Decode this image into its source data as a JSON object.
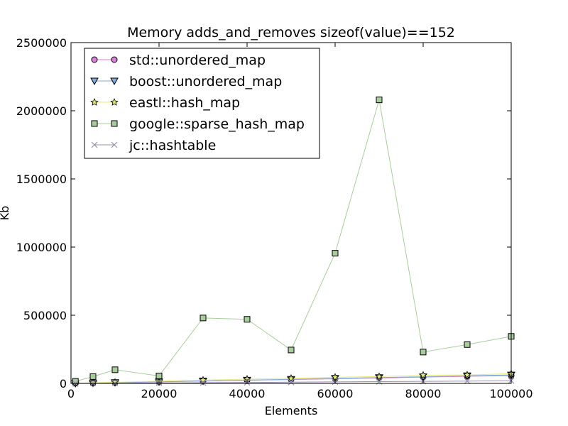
{
  "chart_data": {
    "type": "line",
    "title": "Memory adds_and_removes sizeof(value)==152",
    "xlabel": "Elements",
    "ylabel": "Kb",
    "xlim": [
      0,
      100000
    ],
    "ylim": [
      0,
      2500000
    ],
    "xticks": [
      0,
      20000,
      40000,
      60000,
      80000,
      100000
    ],
    "yticks": [
      0,
      500000,
      1000000,
      1500000,
      2000000,
      2500000
    ],
    "xtick_labels": [
      "0",
      "20000",
      "40000",
      "60000",
      "80000",
      "100000"
    ],
    "ytick_labels": [
      "0",
      "500000",
      "1000000",
      "1500000",
      "2000000",
      "2500000"
    ],
    "grid": false,
    "legend_position": "upper-left",
    "x": [
      1000,
      5000,
      10000,
      20000,
      30000,
      40000,
      50000,
      60000,
      70000,
      80000,
      90000,
      100000
    ],
    "series": [
      {
        "name": "std::unordered_map",
        "color": "#dd7fdd",
        "marker": "circle",
        "values": [
          1000,
          3000,
          6000,
          11000,
          17000,
          23000,
          28000,
          34000,
          40000,
          46000,
          52000,
          57000
        ]
      },
      {
        "name": "boost::unordered_map",
        "color": "#7fa8dd",
        "marker": "triangle-down",
        "values": [
          1000,
          3500,
          6500,
          12000,
          18000,
          24000,
          30000,
          37000,
          43000,
          49000,
          56000,
          62000
        ]
      },
      {
        "name": "eastl::hash_map",
        "color": "#e6ea7a",
        "marker": "star",
        "values": [
          1500,
          4500,
          8500,
          16000,
          24000,
          31000,
          37000,
          45000,
          50000,
          60000,
          62000,
          71000
        ]
      },
      {
        "name": "google::sparse_hash_map",
        "color": "#a8cc9e",
        "marker": "square",
        "values": [
          15000,
          50000,
          100000,
          55000,
          480000,
          470000,
          245000,
          955000,
          2080000,
          230000,
          285000,
          345000
        ]
      },
      {
        "name": "jc::hashtable",
        "color": "#9a92b0",
        "marker": "x",
        "values": [
          500,
          1000,
          2000,
          3000,
          5000,
          7000,
          9000,
          11000,
          13000,
          15000,
          17000,
          20000
        ]
      }
    ]
  }
}
